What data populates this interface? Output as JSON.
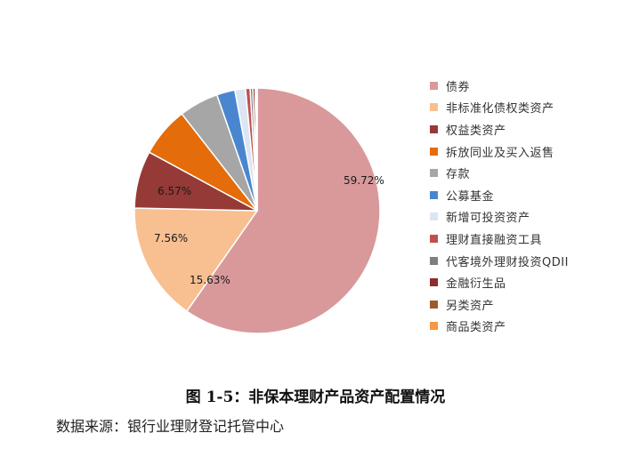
{
  "chart_data": {
    "type": "pie",
    "categories": [
      "债券",
      "非标准化债权类资产",
      "权益类资产",
      "拆放同业及买入返售",
      "存款",
      "公募基金",
      "新增可投资资产",
      "理财直接融资工具",
      "代客境外理财投资QDII",
      "金融衍生品",
      "另类资产",
      "商品类资产"
    ],
    "values": [
      59.72,
      15.63,
      7.56,
      6.57,
      5.2,
      2.4,
      1.4,
      0.6,
      0.35,
      0.3,
      0.17,
      0.1
    ],
    "labels": [
      "59.72%",
      "15.63%",
      "7.56%",
      "6.57%",
      "",
      "",
      "",
      "",
      "",
      "",
      "",
      ""
    ],
    "colors": [
      "#d9999b",
      "#f8bf91",
      "#953a36",
      "#e46c0a",
      "#a6a6a6",
      "#4a86d0",
      "#dce5f3",
      "#c0504d",
      "#7f7f7f",
      "#8c2d2d",
      "#9c5b2b",
      "#f79646"
    ],
    "legend_position": "right"
  },
  "caption": "图 1-5：非保本理财产品资产配置情况",
  "source": "数据来源：银行业理财登记托管中心"
}
